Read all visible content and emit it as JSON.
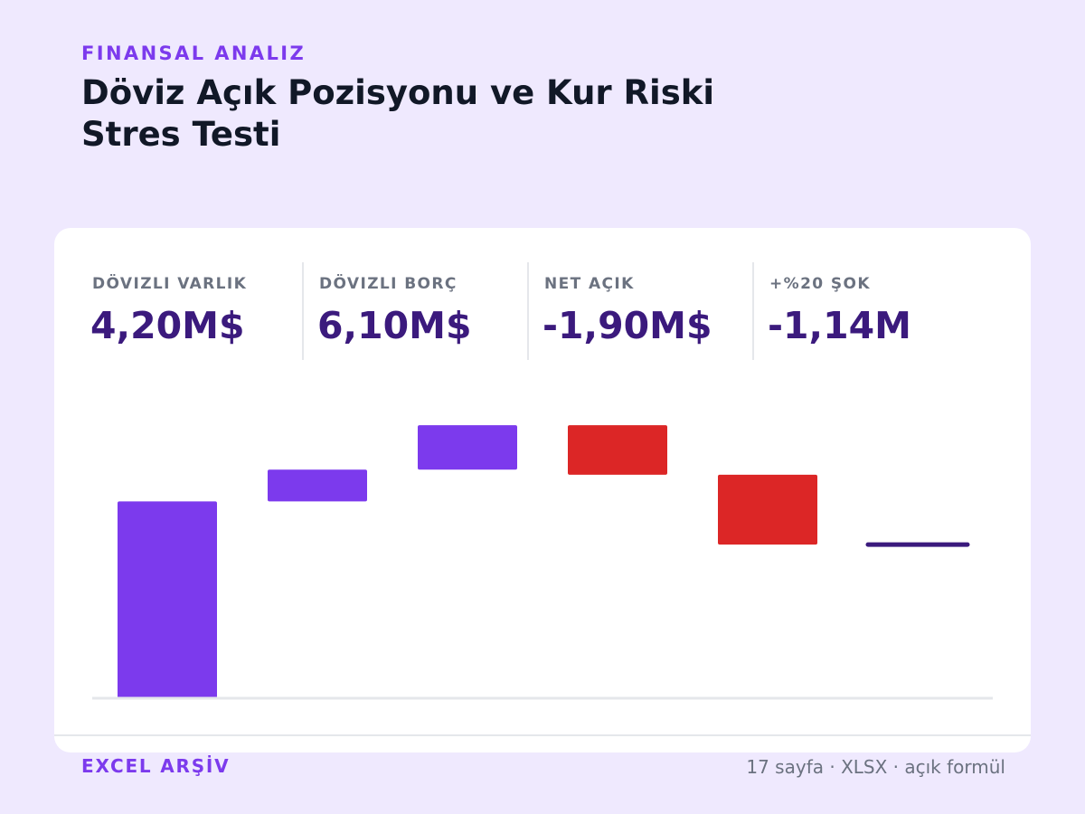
{
  "header": {
    "eyebrow": "FINANSAL ANALIZ",
    "title": "Döviz Açık Pozisyonu ve Kur Riski Stres Testi"
  },
  "kpis": [
    {
      "label": "DÖVIZLI VARLIK",
      "value": "4,20M$"
    },
    {
      "label": "DÖVIZLI BORÇ",
      "value": "6,10M$"
    },
    {
      "label": "NET AÇIK",
      "value": "-1,90M$"
    },
    {
      "label": "+%20 ŞOK",
      "value": "-1,14M"
    }
  ],
  "chart_data": {
    "type": "waterfall",
    "ylim": [
      0,
      4.9
    ],
    "steps": [
      {
        "start": 0,
        "end": 3.1,
        "kind": "increase"
      },
      {
        "start": 3.1,
        "end": 3.6,
        "kind": "increase"
      },
      {
        "start": 3.6,
        "end": 4.3,
        "kind": "increase"
      },
      {
        "start": 4.3,
        "end": 3.52,
        "kind": "decrease"
      },
      {
        "start": 3.52,
        "end": 2.42,
        "kind": "decrease"
      },
      {
        "start": 2.42,
        "end": 2.42,
        "kind": "total"
      }
    ],
    "colors": {
      "increase": "#7c3aed",
      "decrease": "#dc2626",
      "total": "#3b1a7d",
      "axis": "#e5e7eb"
    }
  },
  "footer": {
    "left": "EXCEL ARŞİV",
    "right": "17 sayfa · XLSX · açık formül"
  }
}
